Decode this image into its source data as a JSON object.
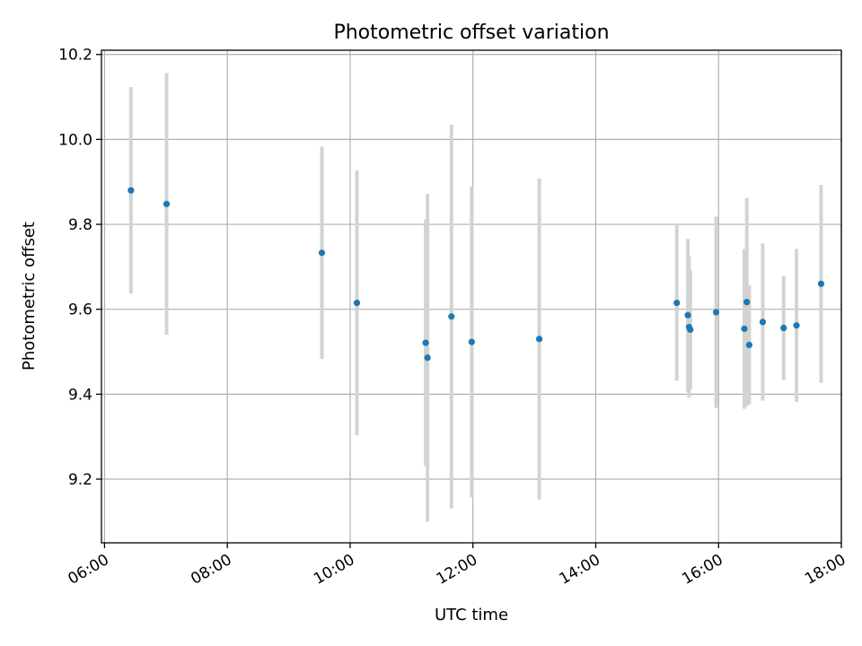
{
  "chart_data": {
    "type": "scatter",
    "title": "Photometric offset variation",
    "xlabel": "UTC time",
    "ylabel": "Photometric offset",
    "xlim_hours": [
      5.95,
      18.0
    ],
    "ylim": [
      9.05,
      10.21
    ],
    "x_ticks": [
      {
        "value": 6,
        "label": "06:00"
      },
      {
        "value": 8,
        "label": "08:00"
      },
      {
        "value": 10,
        "label": "10:00"
      },
      {
        "value": 12,
        "label": "12:00"
      },
      {
        "value": 14,
        "label": "14:00"
      },
      {
        "value": 16,
        "label": "16:00"
      },
      {
        "value": 18,
        "label": "18:00"
      }
    ],
    "y_ticks": [
      {
        "value": 9.2,
        "label": "9.2"
      },
      {
        "value": 9.4,
        "label": "9.4"
      },
      {
        "value": 9.6,
        "label": "9.6"
      },
      {
        "value": 9.8,
        "label": "9.8"
      },
      {
        "value": 10.0,
        "label": "10.0"
      },
      {
        "value": 10.2,
        "label": "10.2"
      }
    ],
    "grid": true,
    "marker_color": "#1f77b4",
    "errorbar_color": "#d3d3d3",
    "points": [
      {
        "t": 6.43,
        "y": 9.88,
        "err": 0.243
      },
      {
        "t": 7.01,
        "y": 9.848,
        "err": 0.308
      },
      {
        "t": 9.54,
        "y": 9.733,
        "err": 0.25
      },
      {
        "t": 10.11,
        "y": 9.615,
        "err": 0.312
      },
      {
        "t": 11.23,
        "y": 9.521,
        "err": 0.29
      },
      {
        "t": 11.26,
        "y": 9.486,
        "err": 0.386
      },
      {
        "t": 11.65,
        "y": 9.583,
        "err": 0.452
      },
      {
        "t": 11.98,
        "y": 9.523,
        "err": 0.366
      },
      {
        "t": 13.08,
        "y": 9.53,
        "err": 0.378
      },
      {
        "t": 15.32,
        "y": 9.615,
        "err": 0.183
      },
      {
        "t": 15.5,
        "y": 9.586,
        "err": 0.18
      },
      {
        "t": 15.52,
        "y": 9.558,
        "err": 0.166
      },
      {
        "t": 15.54,
        "y": 9.552,
        "err": 0.14
      },
      {
        "t": 15.96,
        "y": 9.593,
        "err": 0.225
      },
      {
        "t": 16.42,
        "y": 9.554,
        "err": 0.188
      },
      {
        "t": 16.46,
        "y": 9.617,
        "err": 0.245
      },
      {
        "t": 16.5,
        "y": 9.516,
        "err": 0.14
      },
      {
        "t": 16.72,
        "y": 9.57,
        "err": 0.185
      },
      {
        "t": 17.06,
        "y": 9.556,
        "err": 0.123
      },
      {
        "t": 17.27,
        "y": 9.562,
        "err": 0.18
      },
      {
        "t": 17.67,
        "y": 9.66,
        "err": 0.233
      }
    ]
  }
}
